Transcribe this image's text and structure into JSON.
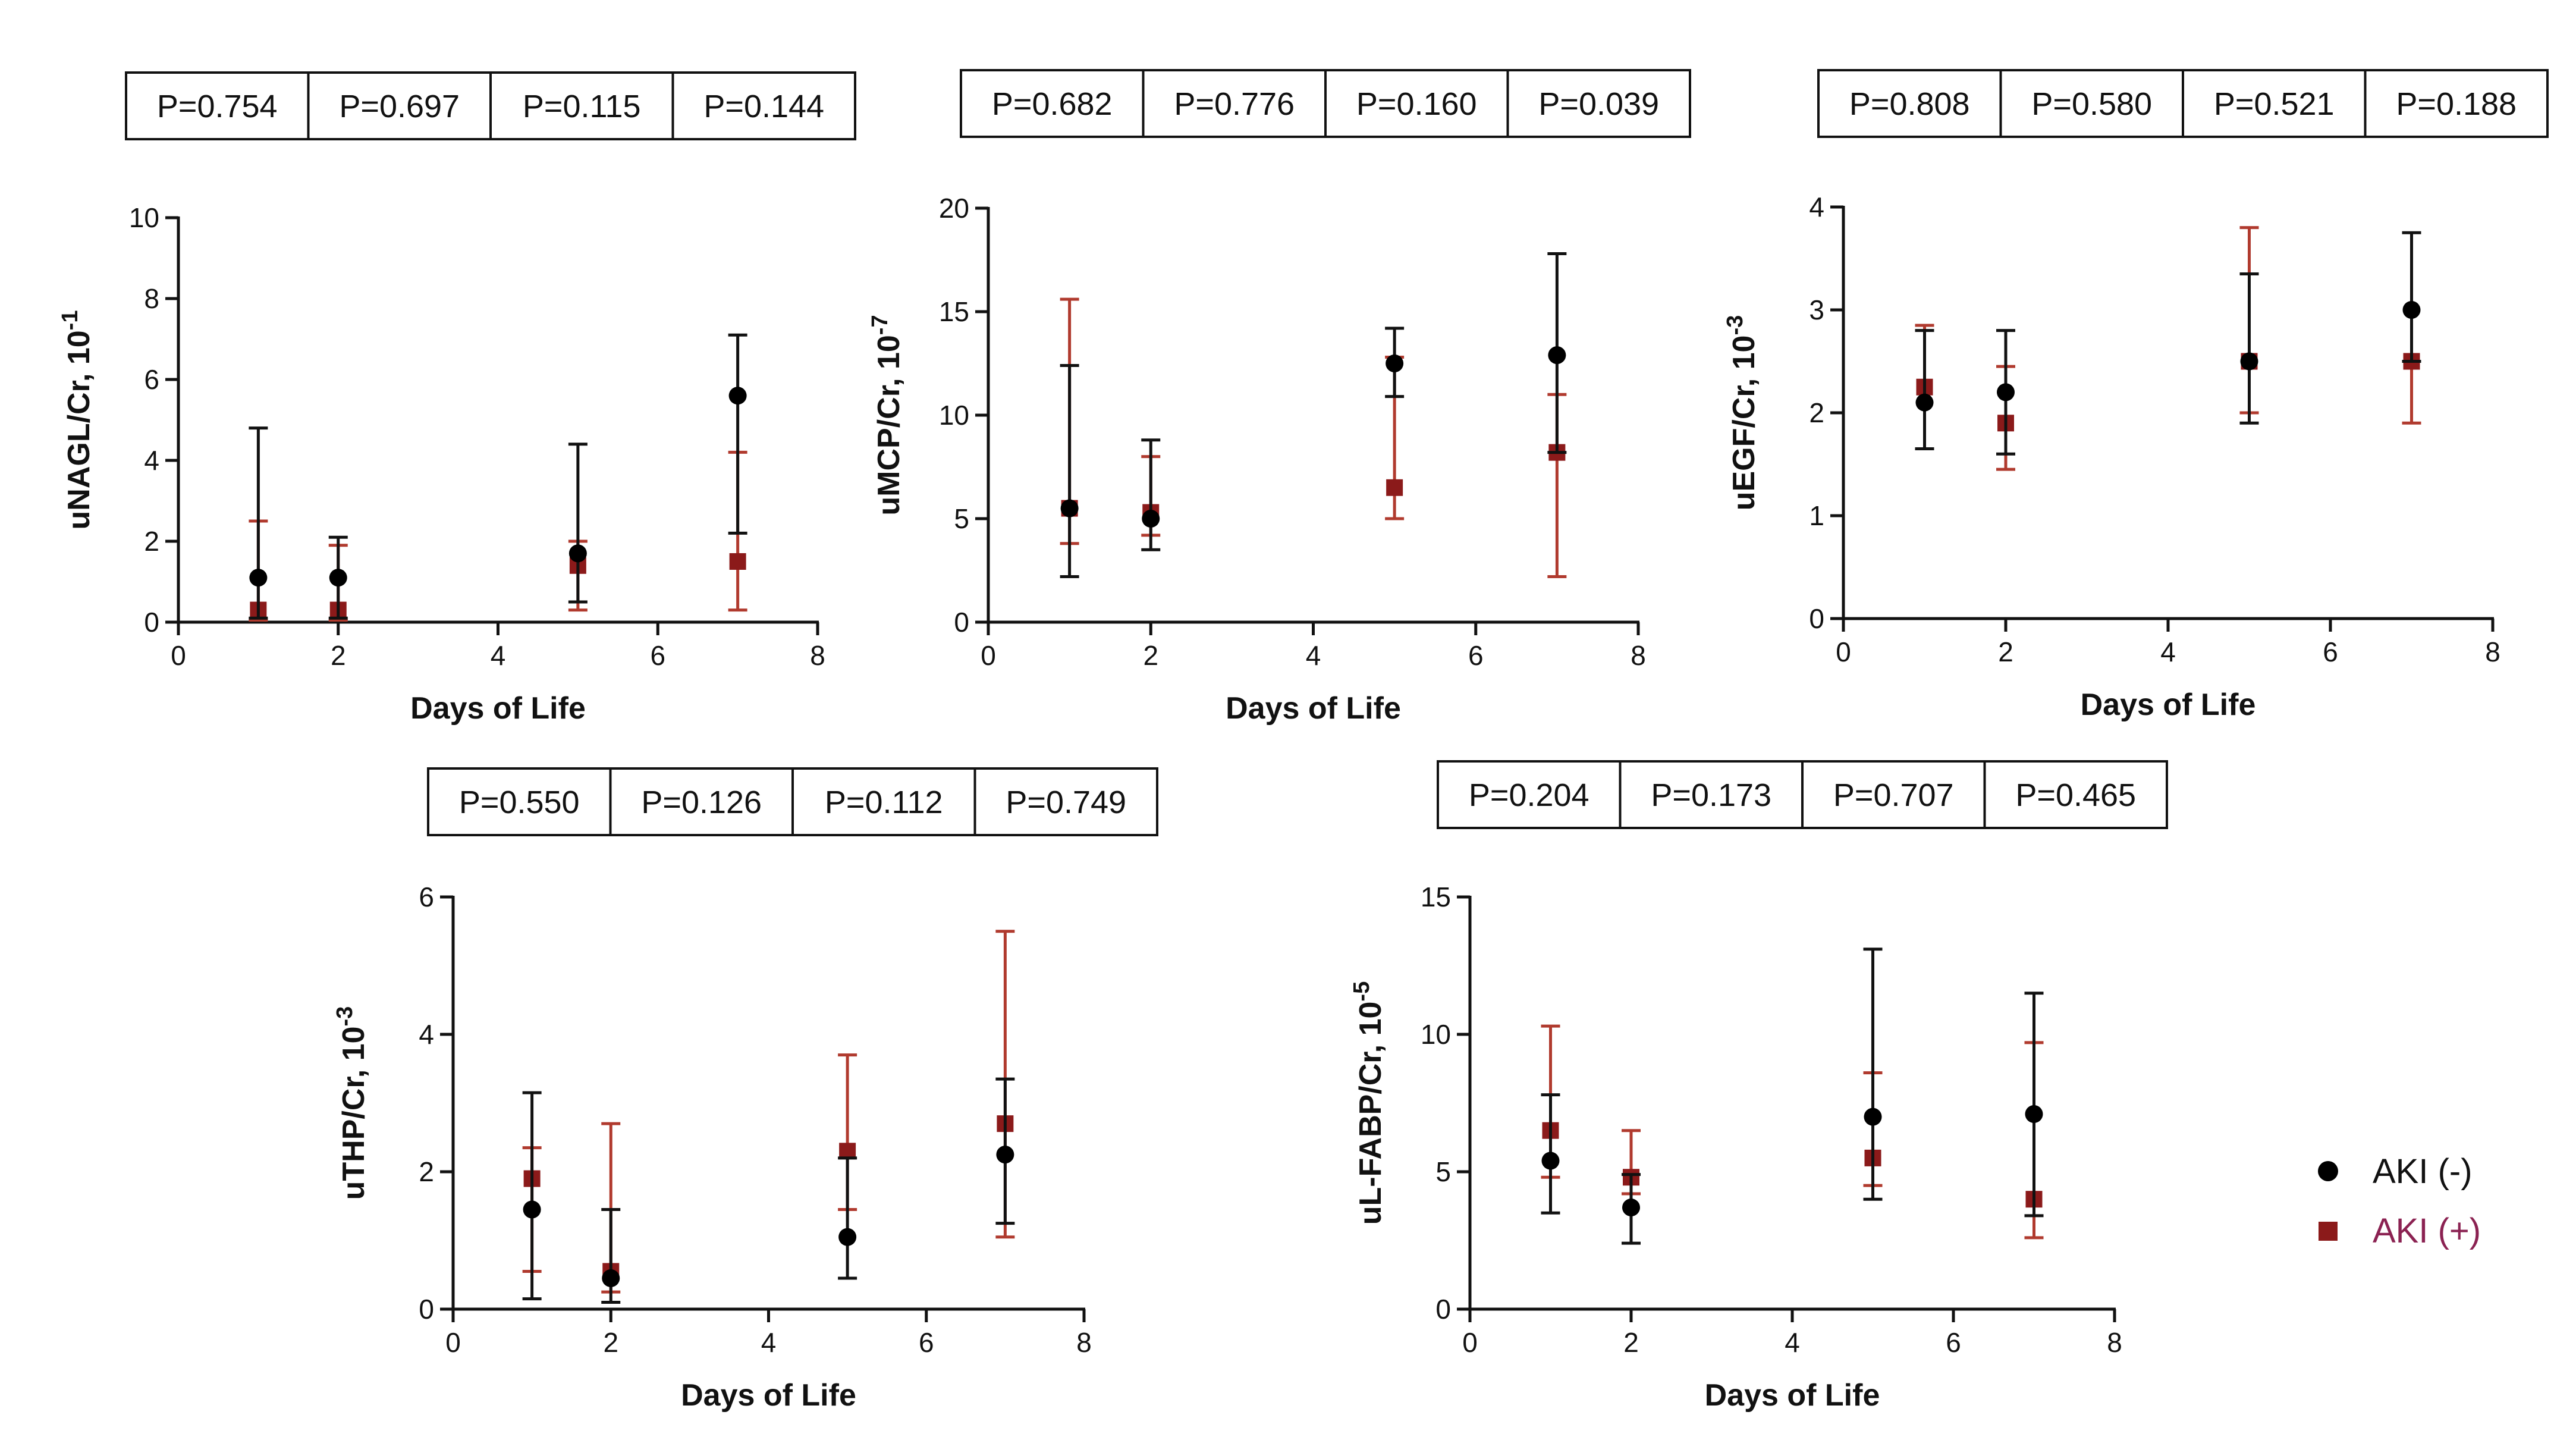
{
  "legend": {
    "items": [
      {
        "label": "AKI (-)",
        "color": "#000000",
        "marker": "circle"
      },
      {
        "label": "AKI (+)",
        "color": "#8b1a1a",
        "marker": "square",
        "label_color": "#8b2252"
      }
    ]
  },
  "colors": {
    "aki_neg": "#000000",
    "aki_pos": "#8b1a1a",
    "errbar_neg": "#111111",
    "errbar_pos": "#b03a2e"
  },
  "chart_data": [
    {
      "type": "scatter",
      "ylabel_main": "uNAGL/Cr, 10",
      "ylabel_exp": "-1",
      "xlabel": "Days of Life",
      "xlim": [
        0,
        8
      ],
      "ylim": [
        0,
        10
      ],
      "xticks": [
        0,
        2,
        4,
        6,
        8
      ],
      "yticks": [
        0,
        2,
        4,
        6,
        8,
        10
      ],
      "p_values": [
        "P=0.754",
        "P=0.697",
        "P=0.115",
        "P=0.144"
      ],
      "series": [
        {
          "name": "AKI (-)",
          "x": [
            1,
            2,
            5,
            7
          ],
          "y": [
            1.1,
            1.1,
            1.7,
            5.6
          ],
          "err_low": [
            0.1,
            0.1,
            0.5,
            2.2
          ],
          "err_high": [
            4.8,
            2.1,
            4.4,
            7.1
          ]
        },
        {
          "name": "AKI (+)",
          "x": [
            1,
            2,
            5,
            7
          ],
          "y": [
            0.3,
            0.3,
            1.4,
            1.5
          ],
          "err_low": [
            0.05,
            0.05,
            0.3,
            0.3
          ],
          "err_high": [
            2.5,
            1.9,
            2.0,
            4.2
          ]
        }
      ]
    },
    {
      "type": "scatter",
      "ylabel_main": "uMCP/Cr, 10",
      "ylabel_exp": "-7",
      "xlabel": "Days of Life",
      "xlim": [
        0,
        8
      ],
      "ylim": [
        0,
        20
      ],
      "xticks": [
        0,
        2,
        4,
        6,
        8
      ],
      "yticks": [
        0,
        5,
        10,
        15,
        20
      ],
      "p_values": [
        "P=0.682",
        "P=0.776",
        "P=0.160",
        "P=0.039"
      ],
      "series": [
        {
          "name": "AKI (-)",
          "x": [
            1,
            2,
            5,
            7
          ],
          "y": [
            5.5,
            5.0,
            12.5,
            12.9
          ],
          "err_low": [
            2.2,
            3.5,
            10.9,
            8.2
          ],
          "err_high": [
            12.4,
            8.8,
            14.2,
            17.8
          ]
        },
        {
          "name": "AKI (+)",
          "x": [
            1,
            2,
            5,
            7
          ],
          "y": [
            5.5,
            5.3,
            6.5,
            8.2
          ],
          "err_low": [
            3.8,
            4.2,
            5.0,
            2.2
          ],
          "err_high": [
            15.6,
            8.0,
            12.8,
            11.0
          ]
        }
      ]
    },
    {
      "type": "scatter",
      "ylabel_main": "uEGF/Cr, 10",
      "ylabel_exp": "-3",
      "xlabel": "Days of Life",
      "xlim": [
        0,
        8
      ],
      "ylim": [
        0,
        4
      ],
      "xticks": [
        0,
        2,
        4,
        6,
        8
      ],
      "yticks": [
        0,
        1,
        2,
        3,
        4
      ],
      "p_values": [
        "P=0.808",
        "P=0.580",
        "P=0.521",
        "P=0.188"
      ],
      "series": [
        {
          "name": "AKI (-)",
          "x": [
            1,
            2,
            5,
            7
          ],
          "y": [
            2.1,
            2.2,
            2.5,
            3.0
          ],
          "err_low": [
            1.65,
            1.6,
            1.9,
            2.5
          ],
          "err_high": [
            2.8,
            2.8,
            3.35,
            3.75
          ]
        },
        {
          "name": "AKI (+)",
          "x": [
            1,
            2,
            5,
            7
          ],
          "y": [
            2.25,
            1.9,
            2.5,
            2.5
          ],
          "err_low": [
            1.65,
            1.45,
            2.0,
            1.9
          ],
          "err_high": [
            2.85,
            2.45,
            3.8,
            2.5
          ]
        }
      ]
    },
    {
      "type": "scatter",
      "ylabel_main": "uTHP/Cr, 10",
      "ylabel_exp": "-3",
      "xlabel": "Days of Life",
      "xlim": [
        0,
        8
      ],
      "ylim": [
        0,
        6
      ],
      "xticks": [
        0,
        2,
        4,
        6,
        8
      ],
      "yticks": [
        0,
        2,
        4,
        6
      ],
      "p_values": [
        "P=0.550",
        "P=0.126",
        "P=0.112",
        "P=0.749"
      ],
      "series": [
        {
          "name": "AKI (-)",
          "x": [
            1,
            2,
            5,
            7
          ],
          "y": [
            1.45,
            0.45,
            1.05,
            2.25
          ],
          "err_low": [
            0.15,
            0.1,
            0.45,
            1.25
          ],
          "err_high": [
            3.15,
            1.45,
            2.2,
            3.35
          ]
        },
        {
          "name": "AKI (+)",
          "x": [
            1,
            2,
            5,
            7
          ],
          "y": [
            1.9,
            0.55,
            2.3,
            2.7
          ],
          "err_low": [
            0.55,
            0.25,
            1.45,
            1.05
          ],
          "err_high": [
            2.35,
            2.7,
            3.7,
            5.5
          ]
        }
      ]
    },
    {
      "type": "scatter",
      "ylabel_main": "uL-FABP/Cr, 10",
      "ylabel_exp": "-5",
      "xlabel": "Days of Life",
      "xlim": [
        0,
        8
      ],
      "ylim": [
        0,
        15
      ],
      "xticks": [
        0,
        2,
        4,
        6,
        8
      ],
      "yticks": [
        0,
        5,
        10,
        15
      ],
      "p_values": [
        "P=0.204",
        "P=0.173",
        "P=0.707",
        "P=0.465"
      ],
      "series": [
        {
          "name": "AKI (-)",
          "x": [
            1,
            2,
            5,
            7
          ],
          "y": [
            5.4,
            3.7,
            7.0,
            7.1
          ],
          "err_low": [
            3.5,
            2.4,
            4.0,
            3.4
          ],
          "err_high": [
            7.8,
            4.9,
            13.1,
            11.5
          ]
        },
        {
          "name": "AKI (+)",
          "x": [
            1,
            2,
            5,
            7
          ],
          "y": [
            6.5,
            4.8,
            5.5,
            4.0
          ],
          "err_low": [
            4.8,
            4.2,
            4.5,
            2.6
          ],
          "err_high": [
            10.3,
            6.5,
            8.6,
            9.7
          ]
        }
      ]
    }
  ]
}
